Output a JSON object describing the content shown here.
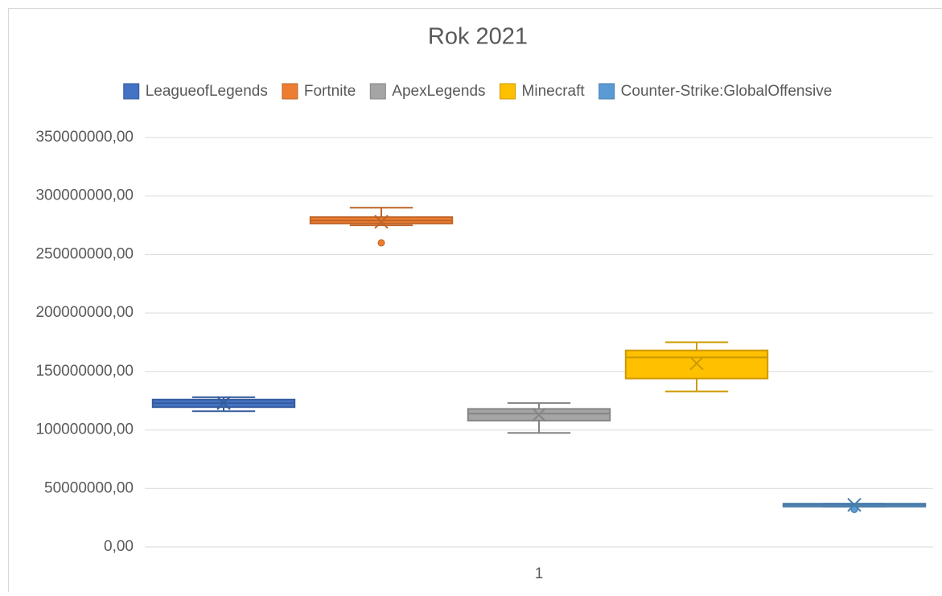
{
  "chart_data": {
    "type": "box",
    "title": "Rok 2021",
    "categories": [
      "1"
    ],
    "ylim": [
      0,
      350000000
    ],
    "yticks": [
      {
        "value": 0,
        "label": "0,00"
      },
      {
        "value": 50000000,
        "label": "50000000,00"
      },
      {
        "value": 100000000,
        "label": "100000000,00"
      },
      {
        "value": 150000000,
        "label": "150000000,00"
      },
      {
        "value": 200000000,
        "label": "200000000,00"
      },
      {
        "value": 250000000,
        "label": "250000000,00"
      },
      {
        "value": 300000000,
        "label": "300000000,00"
      },
      {
        "value": 350000000,
        "label": "350000000,00"
      }
    ],
    "grid": true,
    "legend": "top",
    "series": [
      {
        "name": "LeagueofLegends",
        "color": "#4472c4",
        "min": 116000000,
        "q1": 119500000,
        "median": 123000000,
        "q3": 126000000,
        "max": 128000000,
        "mean": 123000000,
        "outliers": []
      },
      {
        "name": "Fortnite",
        "color": "#ed7d31",
        "min": 275000000,
        "q1": 276500000,
        "median": 279000000,
        "q3": 282000000,
        "max": 290000000,
        "mean": 278000000,
        "outliers": [
          260000000
        ]
      },
      {
        "name": "ApexLegends",
        "color": "#a5a5a5",
        "min": 97500000,
        "q1": 108000000,
        "median": 114000000,
        "q3": 118000000,
        "max": 123000000,
        "mean": 113000000,
        "outliers": []
      },
      {
        "name": "Minecraft",
        "color": "#ffc000",
        "min": 133000000,
        "q1": 144000000,
        "median": 162000000,
        "q3": 168000000,
        "max": 175000000,
        "mean": 157000000,
        "outliers": []
      },
      {
        "name": "Counter-Strike:GlobalOffensive",
        "color": "#5b9bd5",
        "min": 34500000,
        "q1": 34500000,
        "median": 36000000,
        "q3": 37000000,
        "max": 37000000,
        "mean": 36000000,
        "outliers": [
          32000000
        ]
      }
    ]
  }
}
